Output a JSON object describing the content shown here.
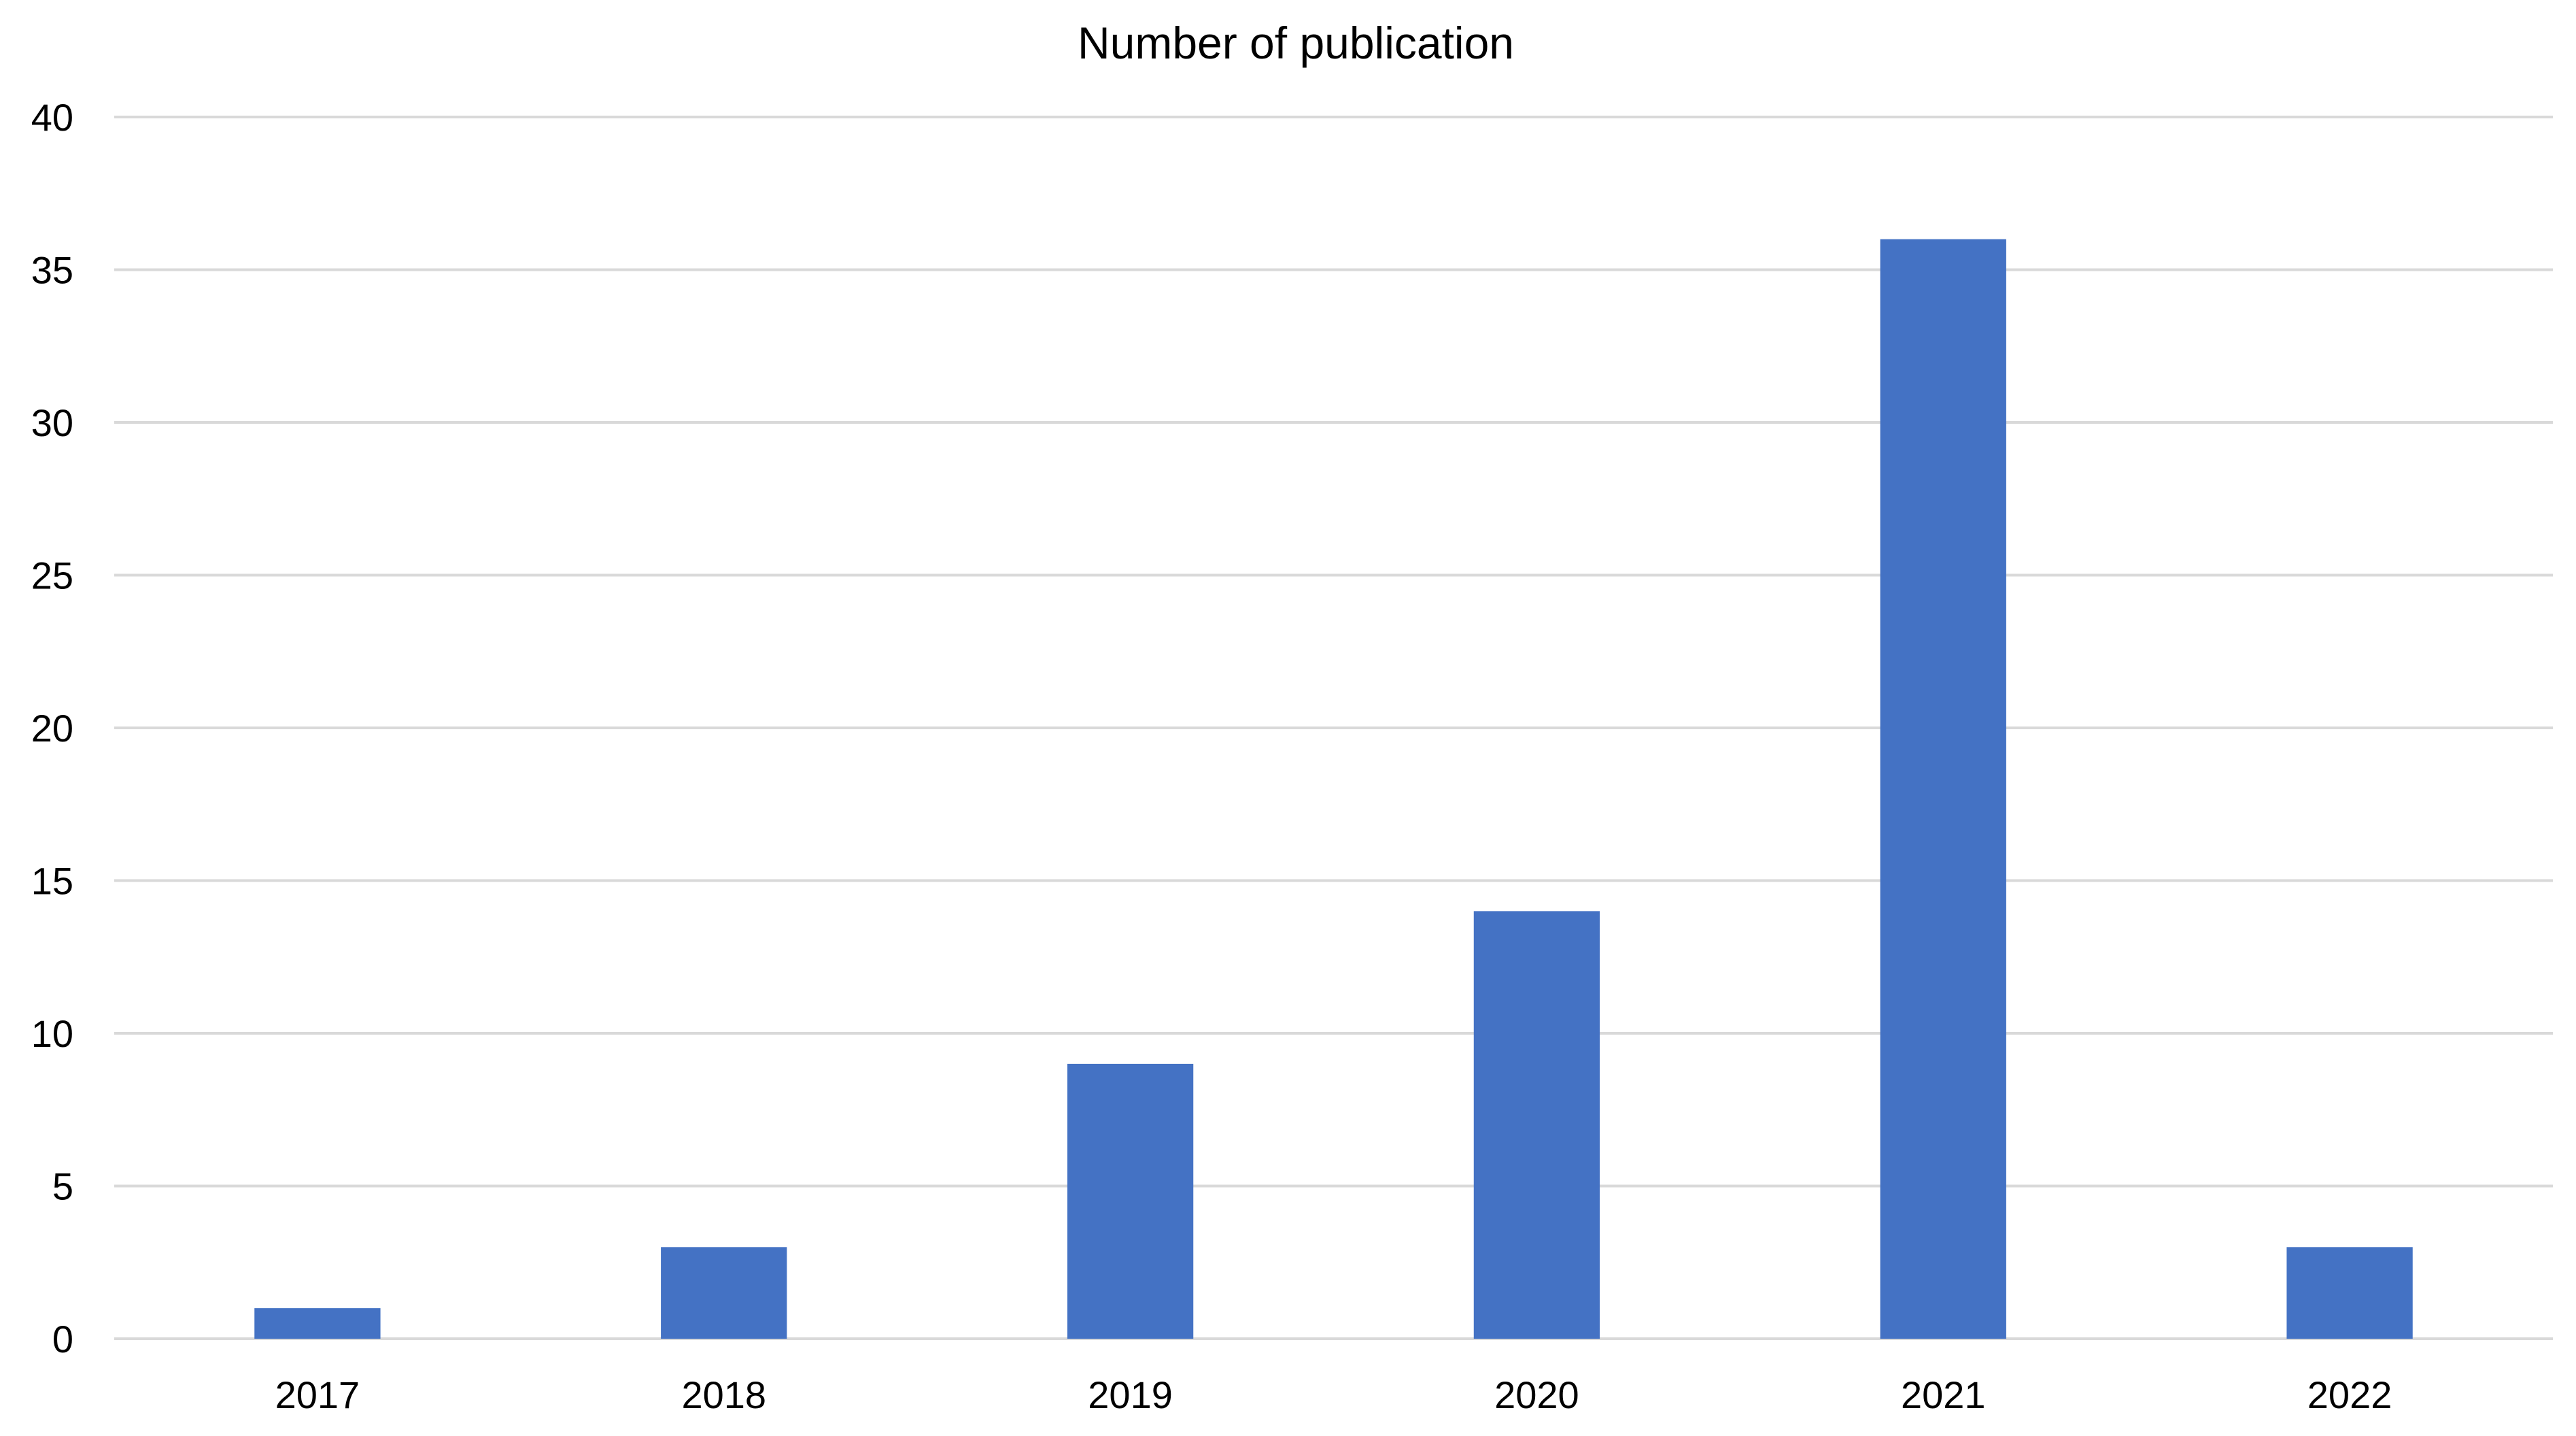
{
  "chart_data": {
    "type": "bar",
    "title": "Number of publication",
    "xlabel": "",
    "ylabel": "",
    "categories": [
      "2017",
      "2018",
      "2019",
      "2020",
      "2021",
      "2022"
    ],
    "series": [
      {
        "values": [
          1,
          3,
          9,
          14,
          36,
          3
        ],
        "color": "#4472c4"
      }
    ],
    "ylim": [
      0,
      40
    ],
    "yticks": [
      0,
      5,
      10,
      15,
      20,
      25,
      30,
      35,
      40
    ],
    "grid": true,
    "legend": "none",
    "colors": {
      "bar": "#4472c4",
      "grid": "#d9d9d9",
      "text": "#000000",
      "background": "#ffffff"
    }
  }
}
